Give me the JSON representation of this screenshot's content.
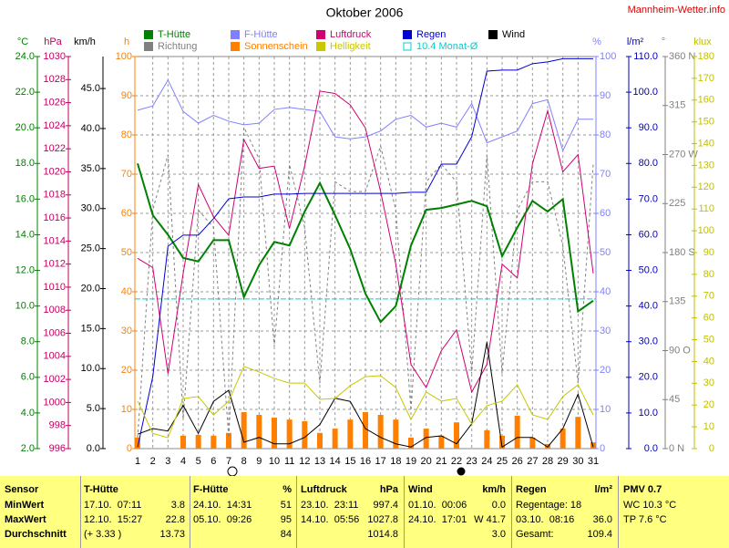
{
  "chart_data": {
    "type": "line",
    "title": "Oktober 2006",
    "source": "Mannheim-Wetter.info",
    "categories": [
      "1",
      "2",
      "3",
      "4",
      "5",
      "6",
      "7",
      "8",
      "9",
      "10",
      "11",
      "12",
      "13",
      "14",
      "15",
      "16",
      "17",
      "18",
      "19",
      "20",
      "21",
      "22",
      "23",
      "24",
      "25",
      "26",
      "27",
      "28",
      "29",
      "30",
      "31"
    ],
    "axes": [
      {
        "unit": "°C",
        "color": "#008000",
        "ylim": [
          2,
          24
        ],
        "yticks": [
          {
            "value": 2,
            "label": "2.0"
          },
          {
            "value": 4,
            "label": "4.0"
          },
          {
            "value": 6,
            "label": "6.0"
          },
          {
            "value": 8,
            "label": "8.0"
          },
          {
            "value": 10,
            "label": "10.0"
          },
          {
            "value": 12,
            "label": "12.0"
          },
          {
            "value": 14,
            "label": "14.0"
          },
          {
            "value": 16,
            "label": "16.0"
          },
          {
            "value": 18,
            "label": "18.0"
          },
          {
            "value": 20,
            "label": "20.0"
          },
          {
            "value": 22,
            "label": "22.0"
          },
          {
            "value": 24,
            "label": "24.0"
          }
        ]
      },
      {
        "unit": "hPa",
        "color": "#c00060",
        "ylim": [
          996,
          1030
        ],
        "yticks": [
          996,
          998,
          1000,
          1002,
          1004,
          1006,
          1008,
          1010,
          1012,
          1014,
          1016,
          1018,
          1020,
          1022,
          1024,
          1026,
          1028,
          1030
        ]
      },
      {
        "unit": "km/h",
        "color": "#000000",
        "ylim": [
          0,
          49
        ],
        "yticks": [
          {
            "value": 0,
            "label": "0.0"
          },
          {
            "value": 5,
            "label": "5.0"
          },
          {
            "value": 10,
            "label": "10.0"
          },
          {
            "value": 15,
            "label": "15.0"
          },
          {
            "value": 20,
            "label": "20.0"
          },
          {
            "value": 25,
            "label": "25.0"
          },
          {
            "value": 30,
            "label": "30.0"
          },
          {
            "value": 35,
            "label": "35.0"
          },
          {
            "value": 40,
            "label": "40.0"
          },
          {
            "value": 45,
            "label": "45.0"
          }
        ]
      },
      {
        "unit": "h",
        "color": "#ff8000",
        "ylim": [
          0,
          100
        ],
        "yticks": [
          0,
          10,
          20,
          30,
          40,
          50,
          60,
          70,
          80,
          90,
          100
        ],
        "grid": true
      },
      {
        "unit": "%",
        "color": "#8080ff",
        "ylim": [
          0,
          100
        ],
        "yticks": [
          0,
          10,
          20,
          30,
          40,
          50,
          60,
          70,
          80,
          90,
          100
        ]
      },
      {
        "unit": "l/m²",
        "color": "#0000c0",
        "ylim": [
          0,
          110
        ],
        "yticks": [
          {
            "value": 0,
            "label": "0.0"
          },
          {
            "value": 10,
            "label": "10.0"
          },
          {
            "value": 20,
            "label": "20.0"
          },
          {
            "value": 30,
            "label": "30.0"
          },
          {
            "value": 40,
            "label": "40.0"
          },
          {
            "value": 50,
            "label": "50.0"
          },
          {
            "value": 60,
            "label": "60.0"
          },
          {
            "value": 70,
            "label": "70.0"
          },
          {
            "value": 80,
            "label": "80.0"
          },
          {
            "value": 90,
            "label": "90.0"
          },
          {
            "value": 100,
            "label": "100.0"
          },
          {
            "value": 110,
            "label": "110.0"
          }
        ]
      },
      {
        "unit": "°",
        "color": "#808080",
        "ylim": [
          0,
          360
        ],
        "yticks": [
          {
            "value": 0,
            "label": "0 N"
          },
          45,
          {
            "value": 90,
            "label": "90 O"
          },
          135,
          {
            "value": 180,
            "label": "180 S"
          },
          225,
          {
            "value": 270,
            "label": "270 W"
          },
          315,
          {
            "value": 360,
            "label": "360 N"
          }
        ]
      },
      {
        "unit": "klux",
        "color": "#c0c000",
        "ylim": [
          0,
          180
        ],
        "yticks": [
          0,
          10,
          20,
          30,
          40,
          50,
          60,
          70,
          80,
          90,
          100,
          110,
          120,
          130,
          140,
          150,
          160,
          170,
          180
        ]
      }
    ],
    "series": [
      {
        "name": "T-Hütte",
        "color": "#008000",
        "axis": 0,
        "style": "line",
        "values": [
          18.0,
          15.1,
          14.0,
          12.7,
          12.5,
          13.7,
          13.7,
          10.5,
          12.3,
          13.6,
          13.4,
          15.3,
          16.9,
          15.1,
          13.2,
          10.7,
          9.1,
          10.0,
          13.4,
          15.4,
          15.5,
          15.7,
          15.9,
          15.6,
          12.8,
          14.4,
          15.9,
          15.3,
          16.0,
          9.7,
          10.3
        ]
      },
      {
        "name": "F-Hütte",
        "color": "#8080ff",
        "axis": 4,
        "style": "line",
        "values": [
          86.3,
          87.4,
          94,
          86,
          83,
          85,
          83.5,
          82.6,
          83,
          86.5,
          87,
          86.5,
          86,
          79.5,
          79,
          79.5,
          81,
          84,
          85,
          82,
          83,
          82,
          88,
          78,
          79.5,
          81,
          88,
          89,
          76,
          84,
          84
        ]
      },
      {
        "name": "Luftdruck",
        "color": "#d00070",
        "axis": 1,
        "style": "line",
        "values": [
          1012.5,
          1011.7,
          1002.5,
          1011.2,
          1018.9,
          1016.1,
          1014.5,
          1022.8,
          1020.3,
          1020.5,
          1015.1,
          1020.5,
          1027.0,
          1026.8,
          1025.8,
          1023.8,
          1018.3,
          1012.0,
          1003.3,
          1001.3,
          1004.5,
          1006.3,
          1000.9,
          1003.3,
          1012.0,
          1010.8,
          1020.7,
          1025.3,
          1020.0,
          1021.5,
          1011.2
        ]
      },
      {
        "name": "Regen",
        "color": "#0000d0",
        "axis": 5,
        "style": "line",
        "values": [
          0.4,
          20.2,
          56.8,
          59.9,
          59.9,
          64.5,
          70.1,
          70.6,
          70.6,
          71.4,
          71.4,
          71.6,
          71.6,
          71.6,
          71.6,
          71.6,
          71.6,
          71.6,
          71.9,
          71.9,
          79.8,
          79.8,
          87.5,
          105.9,
          106.2,
          106.2,
          108.0,
          108.5,
          109.4,
          109.4,
          109.4
        ]
      },
      {
        "name": "Wind",
        "color": "#000000",
        "axis": 2,
        "style": "line",
        "values": [
          1.8,
          2.5,
          2.2,
          5.4,
          1.9,
          5.9,
          7.3,
          0.8,
          1.4,
          0.6,
          0.6,
          1.4,
          3.0,
          6.3,
          5.9,
          2.5,
          1.4,
          0.6,
          0.2,
          1.4,
          1.6,
          0.6,
          3.1,
          13.3,
          0.2,
          1.4,
          1.4,
          0.2,
          2.5,
          6.8,
          0.2
        ]
      },
      {
        "name": "Richtung",
        "color": "#808080",
        "axis": 6,
        "style": "dashed",
        "values": [
          10,
          219,
          270,
          27,
          219,
          203,
          10,
          295,
          266,
          94,
          261,
          203,
          60,
          245,
          236,
          236,
          278,
          219,
          35,
          245,
          261,
          245,
          69,
          270,
          69,
          219,
          245,
          245,
          186,
          60,
          261
        ]
      },
      {
        "name": "Sonnenschein",
        "color": "#ff8000",
        "axis": 3,
        "style": "bar",
        "values": [
          2.8,
          0,
          0,
          3.3,
          3.5,
          3.3,
          4.0,
          9.3,
          8.6,
          7.9,
          7.4,
          7.0,
          4.0,
          5.1,
          7.4,
          9.3,
          8.6,
          7.4,
          2.8,
          5.1,
          3.3,
          6.7,
          0,
          4.7,
          3.3,
          8.4,
          2.8,
          1.2,
          5.1,
          8.1,
          1.6
        ]
      },
      {
        "name": "Helligkeit",
        "color": "#c8c800",
        "axis": 7,
        "style": "line",
        "values": [
          21.8,
          7,
          5,
          23,
          23.9,
          15.5,
          21.8,
          37.7,
          35.2,
          32.2,
          30.1,
          30.1,
          22.6,
          23,
          28.9,
          33,
          33.5,
          28,
          13.4,
          26,
          21.8,
          23,
          11.3,
          19.7,
          21.8,
          29.3,
          15.5,
          13.4,
          23.9,
          29.3,
          15.5
        ]
      },
      {
        "name": "10.4 Monat-Ø",
        "color": "#00d0d0",
        "axis": 0,
        "style": "hline",
        "value": 10.4
      }
    ]
  },
  "table": {
    "header": [
      "Sensor",
      "T-Hütte",
      null,
      "F-Hütte",
      "%",
      "Luftdruck",
      "hPa",
      "Wind",
      "km/h",
      "Regen",
      "l/m²",
      "PMV 0.7"
    ],
    "rows": [
      [
        "MinWert",
        "17.10.  07:11",
        "3.8",
        "24.10.  14:31",
        "51",
        "23.10.  23:11",
        "997.4",
        "01.10.  00:06",
        "0.0",
        "Regentage: 18",
        null,
        "WC 10.3 °C"
      ],
      [
        "MaxWert",
        "12.10.  15:27",
        "22.8",
        "05.10.  09:26",
        "95",
        "14.10.  05:56",
        "1027.8",
        "24.10.  17:01",
        "W 41.7",
        "03.10.  08:16",
        "36.0",
        "TP 7.6 °C"
      ],
      [
        "Durchschnitt",
        "(+ 3.33 )",
        "13.73",
        null,
        "84",
        null,
        "1014.8",
        null,
        "3.0",
        "Gesamt:",
        "109.4",
        null
      ]
    ]
  }
}
